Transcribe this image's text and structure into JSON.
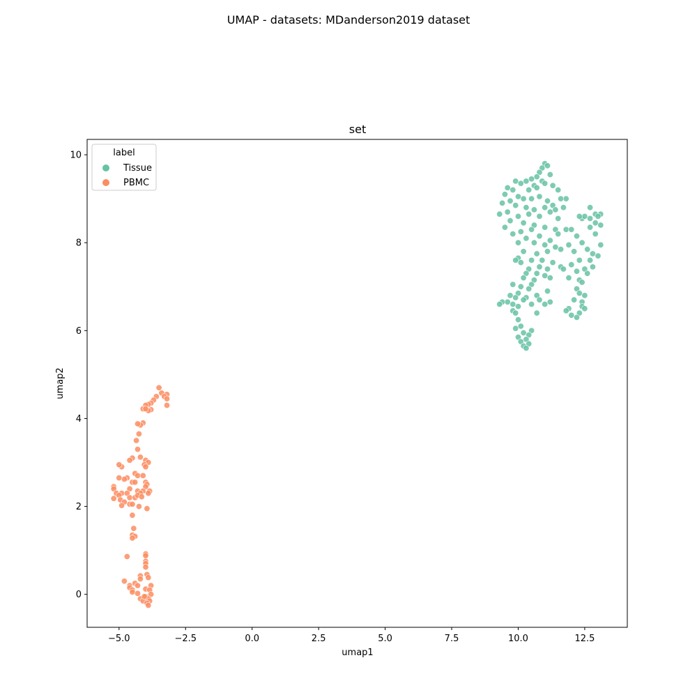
{
  "suptitle": "UMAP - datasets: MDanderson2019 dataset",
  "chart_data": {
    "type": "scatter",
    "title": "set",
    "xlabel": "umap1",
    "ylabel": "umap2",
    "xlim": [
      -6.2,
      14.1
    ],
    "ylim": [
      -0.75,
      10.35
    ],
    "xticks": [
      -5.0,
      -2.5,
      0.0,
      2.5,
      5.0,
      7.5,
      10.0,
      12.5
    ],
    "xtick_labels": [
      "−5.0",
      "−2.5",
      "0.0",
      "2.5",
      "5.0",
      "7.5",
      "10.0",
      "12.5"
    ],
    "yticks": [
      0,
      2,
      4,
      6,
      8,
      10
    ],
    "ytick_labels": [
      "0",
      "2",
      "4",
      "6",
      "8",
      "10"
    ],
    "grid": false,
    "legend": {
      "title": "label",
      "placement": "top-left"
    },
    "series": [
      {
        "name": "Tissue",
        "color": "#66c2a5",
        "points": [
          [
            11.0,
            9.8
          ],
          [
            11.1,
            9.75
          ],
          [
            10.9,
            9.7
          ],
          [
            10.8,
            9.6
          ],
          [
            10.7,
            9.5
          ],
          [
            11.2,
            9.55
          ],
          [
            10.5,
            9.45
          ],
          [
            10.9,
            9.4
          ],
          [
            10.3,
            9.4
          ],
          [
            10.1,
            9.35
          ],
          [
            9.9,
            9.4
          ],
          [
            10.6,
            9.3
          ],
          [
            11.0,
            9.35
          ],
          [
            11.3,
            9.3
          ],
          [
            10.4,
            9.2
          ],
          [
            10.7,
            9.25
          ],
          [
            11.5,
            9.2
          ],
          [
            11.8,
            9.0
          ],
          [
            9.8,
            9.2
          ],
          [
            9.6,
            9.25
          ],
          [
            9.5,
            9.1
          ],
          [
            10.0,
            9.05
          ],
          [
            10.2,
            9.0
          ],
          [
            10.5,
            9.0
          ],
          [
            10.8,
            9.05
          ],
          [
            11.1,
            8.95
          ],
          [
            11.6,
            9.0
          ],
          [
            9.7,
            8.95
          ],
          [
            9.4,
            8.9
          ],
          [
            9.9,
            8.85
          ],
          [
            10.3,
            8.8
          ],
          [
            10.6,
            8.75
          ],
          [
            11.0,
            8.8
          ],
          [
            11.3,
            8.85
          ],
          [
            11.7,
            8.8
          ],
          [
            9.6,
            8.7
          ],
          [
            9.3,
            8.65
          ],
          [
            10.0,
            8.6
          ],
          [
            10.4,
            8.65
          ],
          [
            10.8,
            8.6
          ],
          [
            11.2,
            8.7
          ],
          [
            11.5,
            8.55
          ],
          [
            12.4,
            8.55
          ],
          [
            12.7,
            8.8
          ],
          [
            12.9,
            8.65
          ],
          [
            13.1,
            8.65
          ],
          [
            12.5,
            8.6
          ],
          [
            9.7,
            8.5
          ],
          [
            10.2,
            8.45
          ],
          [
            10.6,
            8.4
          ],
          [
            11.0,
            8.35
          ],
          [
            11.4,
            8.3
          ],
          [
            12.9,
            8.45
          ],
          [
            13.1,
            8.4
          ],
          [
            9.5,
            8.35
          ],
          [
            10.5,
            8.3
          ],
          [
            10.1,
            8.25
          ],
          [
            11.8,
            8.3
          ],
          [
            12.0,
            8.3
          ],
          [
            12.7,
            8.35
          ],
          [
            9.8,
            8.2
          ],
          [
            10.3,
            8.1
          ],
          [
            10.8,
            8.15
          ],
          [
            11.2,
            8.05
          ],
          [
            11.5,
            8.2
          ],
          [
            12.2,
            8.15
          ],
          [
            12.9,
            8.2
          ],
          [
            10.0,
            8.0
          ],
          [
            10.6,
            8.0
          ],
          [
            11.0,
            7.95
          ],
          [
            11.4,
            7.9
          ],
          [
            11.9,
            7.95
          ],
          [
            12.4,
            8.0
          ],
          [
            13.1,
            7.95
          ],
          [
            10.2,
            7.8
          ],
          [
            10.7,
            7.75
          ],
          [
            11.1,
            7.8
          ],
          [
            11.6,
            7.85
          ],
          [
            12.1,
            7.8
          ],
          [
            12.6,
            7.85
          ],
          [
            12.8,
            7.75
          ],
          [
            13.0,
            7.7
          ],
          [
            10.0,
            7.65
          ],
          [
            10.5,
            7.6
          ],
          [
            10.9,
            7.6
          ],
          [
            11.3,
            7.55
          ],
          [
            12.3,
            7.6
          ],
          [
            12.7,
            7.6
          ],
          [
            10.1,
            7.55
          ],
          [
            10.4,
            7.4
          ],
          [
            10.8,
            7.45
          ],
          [
            11.1,
            7.4
          ],
          [
            11.6,
            7.45
          ],
          [
            12.0,
            7.5
          ],
          [
            12.5,
            7.4
          ],
          [
            12.8,
            7.45
          ],
          [
            10.3,
            7.3
          ],
          [
            10.7,
            7.3
          ],
          [
            11.0,
            7.25
          ],
          [
            12.2,
            7.35
          ],
          [
            12.6,
            7.3
          ],
          [
            10.2,
            7.2
          ],
          [
            10.6,
            7.15
          ],
          [
            11.2,
            7.2
          ],
          [
            11.9,
            7.2
          ],
          [
            12.3,
            7.15
          ],
          [
            9.8,
            7.05
          ],
          [
            10.1,
            7.0
          ],
          [
            10.5,
            7.05
          ],
          [
            12.4,
            7.1
          ],
          [
            10.4,
            6.95
          ],
          [
            11.1,
            6.9
          ],
          [
            12.2,
            6.95
          ],
          [
            10.0,
            6.85
          ],
          [
            10.3,
            6.75
          ],
          [
            10.7,
            6.8
          ],
          [
            12.3,
            6.85
          ],
          [
            12.5,
            6.8
          ],
          [
            9.7,
            6.8
          ],
          [
            9.9,
            6.75
          ],
          [
            10.2,
            6.7
          ],
          [
            10.8,
            6.7
          ],
          [
            11.2,
            6.65
          ],
          [
            12.1,
            6.7
          ],
          [
            12.4,
            6.65
          ],
          [
            9.4,
            6.65
          ],
          [
            9.6,
            6.65
          ],
          [
            9.8,
            6.6
          ],
          [
            10.0,
            6.55
          ],
          [
            10.5,
            6.6
          ],
          [
            11.0,
            6.6
          ],
          [
            12.4,
            6.55
          ],
          [
            12.5,
            6.5
          ],
          [
            11.9,
            6.5
          ],
          [
            11.8,
            6.45
          ],
          [
            12.3,
            6.4
          ],
          [
            9.8,
            6.45
          ],
          [
            9.9,
            6.4
          ],
          [
            10.7,
            6.4
          ],
          [
            12.0,
            6.35
          ],
          [
            12.2,
            6.3
          ],
          [
            10.0,
            6.25
          ],
          [
            10.1,
            6.1
          ],
          [
            9.9,
            6.05
          ],
          [
            10.5,
            6.0
          ],
          [
            10.2,
            5.95
          ],
          [
            10.4,
            5.9
          ],
          [
            10.0,
            5.85
          ],
          [
            10.3,
            5.8
          ],
          [
            10.1,
            5.75
          ],
          [
            10.4,
            5.7
          ],
          [
            10.2,
            5.65
          ],
          [
            10.3,
            5.6
          ],
          [
            9.3,
            6.6
          ],
          [
            13.0,
            8.6
          ],
          [
            12.7,
            8.55
          ],
          [
            11.4,
            8.75
          ],
          [
            9.9,
            7.6
          ],
          [
            12.3,
            8.6
          ],
          [
            11.7,
            7.4
          ]
        ]
      },
      {
        "name": "PBMC",
        "color": "#fc8d62",
        "points": [
          [
            -3.5,
            4.7
          ],
          [
            -3.4,
            4.58
          ],
          [
            -3.2,
            4.55
          ],
          [
            -3.3,
            4.5
          ],
          [
            -3.6,
            4.5
          ],
          [
            -3.2,
            4.45
          ],
          [
            -3.7,
            4.42
          ],
          [
            -3.8,
            4.35
          ],
          [
            -3.9,
            4.32
          ],
          [
            -4.0,
            4.3
          ],
          [
            -3.2,
            4.3
          ],
          [
            -3.8,
            4.2
          ],
          [
            -3.9,
            4.18
          ],
          [
            -4.1,
            4.22
          ],
          [
            -4.0,
            4.22
          ],
          [
            -4.1,
            3.9
          ],
          [
            -4.2,
            3.85
          ],
          [
            -4.3,
            3.88
          ],
          [
            -4.25,
            3.65
          ],
          [
            -4.35,
            3.5
          ],
          [
            -4.3,
            3.3
          ],
          [
            -4.2,
            3.12
          ],
          [
            -4.5,
            3.1
          ],
          [
            -4.6,
            3.05
          ],
          [
            -4.0,
            3.05
          ],
          [
            -3.9,
            3.0
          ],
          [
            -4.05,
            2.95
          ],
          [
            -4.0,
            2.9
          ],
          [
            -4.9,
            2.9
          ],
          [
            -5.0,
            2.95
          ],
          [
            -4.4,
            2.75
          ],
          [
            -4.3,
            2.7
          ],
          [
            -4.1,
            2.7
          ],
          [
            -4.7,
            2.65
          ],
          [
            -4.8,
            2.62
          ],
          [
            -5.0,
            2.65
          ],
          [
            -4.5,
            2.55
          ],
          [
            -4.4,
            2.55
          ],
          [
            -4.0,
            2.55
          ],
          [
            -3.95,
            2.5
          ],
          [
            -5.2,
            2.45
          ],
          [
            -5.2,
            2.4
          ],
          [
            -4.0,
            2.45
          ],
          [
            -4.6,
            2.4
          ],
          [
            -4.3,
            2.35
          ],
          [
            -4.1,
            2.35
          ],
          [
            -3.85,
            2.35
          ],
          [
            -5.1,
            2.3
          ],
          [
            -4.9,
            2.3
          ],
          [
            -4.7,
            2.3
          ],
          [
            -4.2,
            2.3
          ],
          [
            -3.9,
            2.3
          ],
          [
            -5.0,
            2.25
          ],
          [
            -4.6,
            2.2
          ],
          [
            -4.4,
            2.2
          ],
          [
            -4.3,
            2.25
          ],
          [
            -4.15,
            2.22
          ],
          [
            -5.2,
            2.18
          ],
          [
            -4.95,
            2.15
          ],
          [
            -4.8,
            2.1
          ],
          [
            -4.6,
            2.05
          ],
          [
            -4.5,
            2.05
          ],
          [
            -4.9,
            2.02
          ],
          [
            -4.25,
            2.0
          ],
          [
            -3.95,
            1.95
          ],
          [
            -4.5,
            1.8
          ],
          [
            -4.45,
            1.5
          ],
          [
            -4.5,
            1.35
          ],
          [
            -4.4,
            1.32
          ],
          [
            -4.5,
            1.28
          ],
          [
            -4.0,
            0.92
          ],
          [
            -4.0,
            0.88
          ],
          [
            -4.7,
            0.86
          ],
          [
            -4.0,
            0.75
          ],
          [
            -4.0,
            0.7
          ],
          [
            -4.0,
            0.62
          ],
          [
            -3.95,
            0.45
          ],
          [
            -4.2,
            0.42
          ],
          [
            -3.9,
            0.38
          ],
          [
            -4.2,
            0.35
          ],
          [
            -4.8,
            0.3
          ],
          [
            -4.4,
            0.25
          ],
          [
            -4.3,
            0.2
          ],
          [
            -4.6,
            0.2
          ],
          [
            -3.8,
            0.2
          ],
          [
            -4.6,
            0.15
          ],
          [
            -4.0,
            0.12
          ],
          [
            -4.5,
            0.1
          ],
          [
            -3.85,
            0.1
          ],
          [
            -4.5,
            0.05
          ],
          [
            -4.3,
            0.02
          ],
          [
            -3.8,
            0.0
          ],
          [
            -4.0,
            -0.05
          ],
          [
            -3.9,
            -0.1
          ],
          [
            -4.2,
            -0.1
          ],
          [
            -3.85,
            -0.15
          ],
          [
            -4.1,
            -0.15
          ],
          [
            -3.95,
            -0.2
          ],
          [
            -3.9,
            -0.25
          ],
          [
            -4.05,
            -0.05
          ]
        ]
      }
    ]
  }
}
